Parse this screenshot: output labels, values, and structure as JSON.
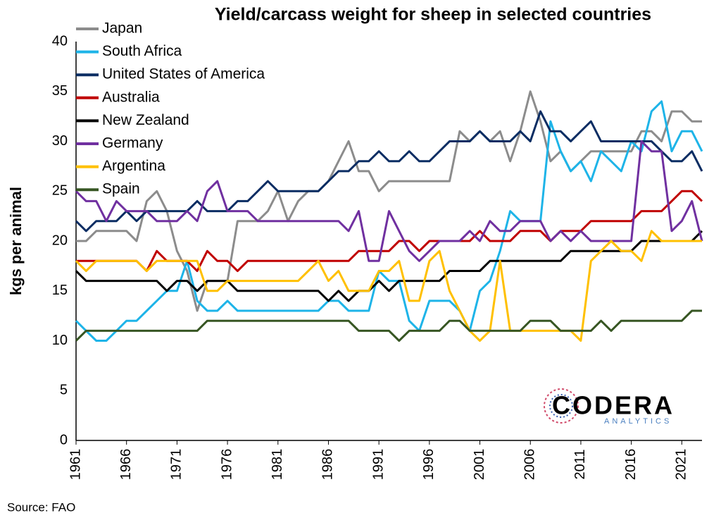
{
  "chart_data": {
    "type": "line",
    "title": "Yield/carcass weight for sheep in selected countries",
    "y_label": "kgs per animal",
    "x": [
      1961,
      1962,
      1963,
      1964,
      1965,
      1966,
      1967,
      1968,
      1969,
      1970,
      1971,
      1972,
      1973,
      1974,
      1975,
      1976,
      1977,
      1978,
      1979,
      1980,
      1981,
      1982,
      1983,
      1984,
      1985,
      1986,
      1987,
      1988,
      1989,
      1990,
      1991,
      1992,
      1993,
      1994,
      1995,
      1996,
      1997,
      1998,
      1999,
      2000,
      2001,
      2002,
      2003,
      2004,
      2005,
      2006,
      2007,
      2008,
      2009,
      2010,
      2011,
      2012,
      2013,
      2014,
      2015,
      2016,
      2017,
      2018,
      2019,
      2020,
      2021,
      2022,
      2023
    ],
    "xlim": [
      1961,
      2023
    ],
    "xticks": [
      1961,
      1966,
      1971,
      1976,
      1981,
      1986,
      1991,
      1996,
      2001,
      2006,
      2011,
      2016,
      2021
    ],
    "ylim": [
      0,
      40
    ],
    "yticks": [
      0,
      5,
      10,
      15,
      20,
      25,
      30,
      35,
      40
    ],
    "grid": false,
    "legend": "top-left",
    "series": [
      {
        "name": "Japan",
        "color": "#8c8c8c",
        "values": [
          20,
          20,
          21,
          21,
          21,
          21,
          20,
          24,
          25,
          23,
          19,
          17,
          13,
          16,
          16,
          16,
          22,
          22,
          22,
          23,
          25,
          22,
          24,
          25,
          25,
          26,
          28,
          30,
          27,
          27,
          25,
          26,
          26,
          26,
          26,
          26,
          26,
          26,
          31,
          30,
          31,
          30,
          31,
          28,
          31,
          35,
          32,
          28,
          29,
          27,
          28,
          29,
          29,
          29,
          29,
          29,
          31,
          31,
          30,
          33,
          33,
          32,
          32
        ]
      },
      {
        "name": "South Africa",
        "color": "#1eb4e8",
        "values": [
          12,
          11,
          10,
          10,
          11,
          12,
          12,
          13,
          14,
          15,
          15,
          18,
          14,
          13,
          13,
          14,
          13,
          13,
          13,
          13,
          13,
          13,
          13,
          13,
          13,
          14,
          14,
          13,
          13,
          13,
          17,
          16,
          16,
          12,
          11,
          14,
          14,
          14,
          13,
          11,
          15,
          16,
          19,
          23,
          22,
          22,
          22,
          32,
          29,
          27,
          28,
          26,
          29,
          28,
          27,
          30,
          29,
          33,
          34,
          29,
          31,
          31,
          29
        ]
      },
      {
        "name": "United States of America",
        "color": "#0b2d63",
        "values": [
          22,
          21,
          22,
          22,
          22,
          23,
          22,
          23,
          23,
          23,
          23,
          23,
          24,
          23,
          23,
          23,
          24,
          24,
          25,
          26,
          25,
          25,
          25,
          25,
          25,
          26,
          27,
          27,
          28,
          28,
          29,
          28,
          28,
          29,
          28,
          28,
          29,
          30,
          30,
          30,
          31,
          30,
          30,
          30,
          31,
          30,
          33,
          31,
          31,
          30,
          31,
          32,
          30,
          30,
          30,
          30,
          30,
          30,
          29,
          28,
          28,
          29,
          27
        ]
      },
      {
        "name": "Australia",
        "color": "#c00000",
        "values": [
          18,
          18,
          18,
          18,
          18,
          18,
          18,
          17,
          19,
          18,
          18,
          18,
          17,
          19,
          18,
          18,
          17,
          18,
          18,
          18,
          18,
          18,
          18,
          18,
          18,
          18,
          18,
          18,
          19,
          19,
          19,
          19,
          20,
          20,
          19,
          20,
          20,
          20,
          20,
          20,
          21,
          20,
          20,
          20,
          21,
          21,
          21,
          20,
          21,
          21,
          21,
          22,
          22,
          22,
          22,
          22,
          23,
          23,
          23,
          24,
          25,
          25,
          24
        ]
      },
      {
        "name": "New Zealand",
        "color": "#000000",
        "values": [
          17,
          16,
          16,
          16,
          16,
          16,
          16,
          16,
          16,
          15,
          16,
          16,
          15,
          16,
          16,
          16,
          15,
          15,
          15,
          15,
          15,
          15,
          15,
          15,
          15,
          14,
          15,
          14,
          15,
          15,
          16,
          15,
          16,
          16,
          16,
          16,
          16,
          17,
          17,
          17,
          17,
          18,
          18,
          18,
          18,
          18,
          18,
          18,
          18,
          19,
          19,
          19,
          19,
          19,
          19,
          19,
          20,
          20,
          20,
          20,
          20,
          20,
          21
        ]
      },
      {
        "name": "Germany",
        "color": "#7030a0",
        "values": [
          25,
          24,
          24,
          22,
          24,
          23,
          23,
          23,
          22,
          22,
          22,
          23,
          22,
          25,
          26,
          23,
          23,
          23,
          22,
          22,
          22,
          22,
          22,
          22,
          22,
          22,
          22,
          21,
          23,
          18,
          18,
          23,
          21,
          19,
          18,
          19,
          20,
          20,
          20,
          21,
          20,
          22,
          21,
          21,
          22,
          22,
          22,
          20,
          21,
          20,
          21,
          20,
          20,
          20,
          20,
          20,
          30,
          29,
          29,
          21,
          22,
          24,
          20
        ]
      },
      {
        "name": "Argentina",
        "color": "#ffc000",
        "values": [
          18,
          17,
          18,
          18,
          18,
          18,
          18,
          17,
          18,
          18,
          18,
          18,
          18,
          15,
          15,
          16,
          16,
          16,
          16,
          16,
          16,
          16,
          16,
          17,
          18,
          16,
          17,
          15,
          15,
          15,
          17,
          17,
          18,
          14,
          14,
          18,
          19,
          15,
          13,
          11,
          10,
          11,
          18,
          11,
          11,
          11,
          11,
          11,
          11,
          11,
          10,
          18,
          19,
          20,
          19,
          19,
          18,
          21,
          20,
          20,
          20,
          20,
          20
        ]
      },
      {
        "name": "Spain",
        "color": "#375623",
        "values": [
          10,
          11,
          11,
          11,
          11,
          11,
          11,
          11,
          11,
          11,
          11,
          11,
          11,
          12,
          12,
          12,
          12,
          12,
          12,
          12,
          12,
          12,
          12,
          12,
          12,
          12,
          12,
          12,
          11,
          11,
          11,
          11,
          10,
          11,
          11,
          11,
          11,
          12,
          12,
          11,
          11,
          11,
          11,
          11,
          11,
          12,
          12,
          12,
          11,
          11,
          11,
          11,
          12,
          11,
          12,
          12,
          12,
          12,
          12,
          12,
          12,
          13,
          13
        ]
      }
    ]
  },
  "logo": {
    "name": "CODERA",
    "tagline": "ANALYTICS"
  },
  "source": "Source: FAO"
}
